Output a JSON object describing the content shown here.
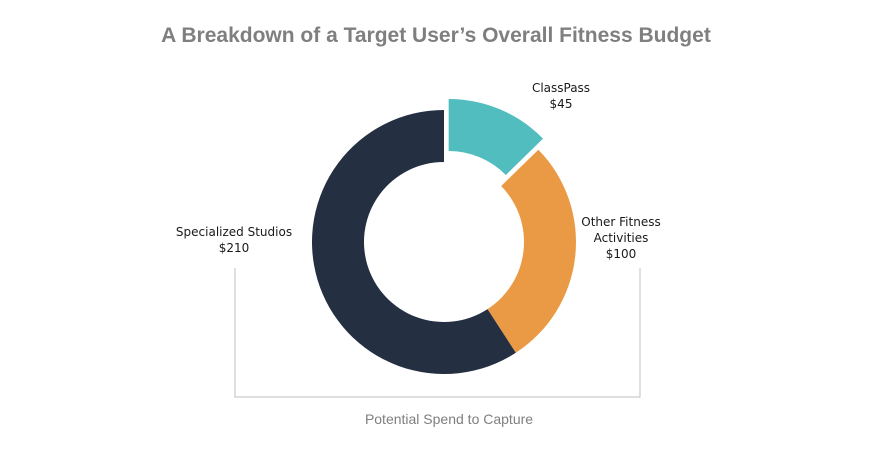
{
  "chart_data": {
    "type": "pie",
    "subtype": "donut",
    "title": "A Breakdown of a Target User’s Overall Fitness Budget",
    "slices": [
      {
        "name": "ClassPass",
        "label_lines": [
          "ClassPass",
          "$45"
        ],
        "value": 45,
        "color": "#52bdbf",
        "exploded": true
      },
      {
        "name": "Other Fitness Activities",
        "label_lines": [
          "Other Fitness",
          "Activities",
          "$100"
        ],
        "value": 100,
        "color": "#ea9a44",
        "exploded": false
      },
      {
        "name": "Specialized Studios",
        "label_lines": [
          "Specialized Studios",
          "$210"
        ],
        "value": 210,
        "color": "#243042",
        "exploded": false
      }
    ],
    "annotation": "Potential Spend to Capture",
    "legend": "none"
  }
}
